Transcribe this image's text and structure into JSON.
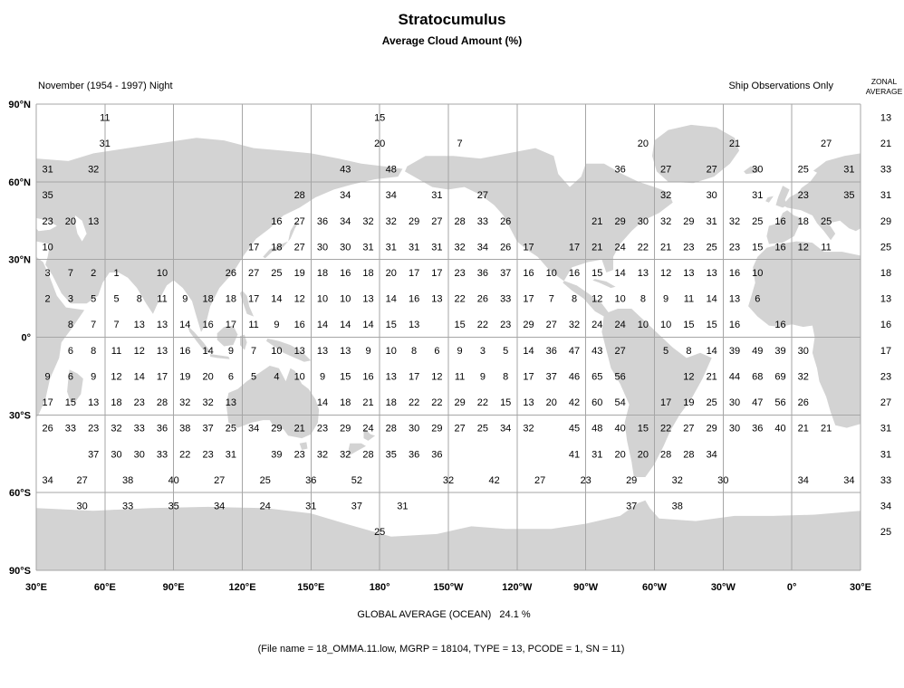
{
  "header_left": "November (1954 - 1997) Night",
  "header_right": "Ship Observations Only",
  "zonal_header": {
    "line1": "ZONAL",
    "line2": "AVERAGE"
  },
  "footer": {
    "global_average": "GLOBAL AVERAGE (OCEAN)   24.1 %",
    "file_info": "(File name = 18_OMMA.11.low, MGRP = 18104, TYPE = 13, PCODE = 1, SN = 11)"
  },
  "colors": {
    "land": "#d3d3d3",
    "grid": "#a6a6a6",
    "text": "#000000"
  },
  "chart_data": {
    "type": "heatmap",
    "title": "Stratocumulus",
    "subtitle": "Average Cloud Amount (%)",
    "units": "percent cloud amount",
    "x_tick_labels": [
      "30°E",
      "60°E",
      "90°E",
      "120°E",
      "150°E",
      "180°",
      "150°W",
      "120°W",
      "90°W",
      "60°W",
      "30°W",
      "0°",
      "30°E"
    ],
    "y_tick_labels": [
      "90°N",
      "60°N",
      "30°N",
      "0°",
      "30°S",
      "60°S",
      "90°S"
    ],
    "lon_start_deg": 30,
    "lon_cols": 36,
    "lat_rows": 18,
    "grid": "30 degree graticule, values in 10 degree latitude bands, column index 0 = 30E-40E eastward",
    "rows": [
      [
        [
          2.5,
          11
        ],
        [
          14.5,
          15
        ]
      ],
      [
        [
          2.5,
          31
        ],
        [
          14.5,
          20
        ],
        [
          18,
          7
        ],
        [
          26,
          20
        ],
        [
          30,
          21
        ],
        [
          34,
          27
        ]
      ],
      [
        [
          0,
          31
        ],
        [
          2,
          32
        ],
        [
          13,
          43
        ],
        [
          15,
          48
        ],
        [
          25,
          36
        ],
        [
          27,
          27
        ],
        [
          29,
          27
        ],
        [
          31,
          30
        ],
        [
          33,
          25
        ],
        [
          35,
          31
        ]
      ],
      [
        [
          0,
          35
        ],
        [
          11,
          28
        ],
        [
          13,
          34
        ],
        [
          15,
          34
        ],
        [
          17,
          31
        ],
        [
          19,
          27
        ],
        [
          27,
          32
        ],
        [
          29,
          30
        ],
        [
          31,
          31
        ],
        [
          33,
          23
        ],
        [
          35,
          35
        ]
      ],
      [
        [
          0,
          23
        ],
        [
          1,
          20
        ],
        [
          2,
          13
        ],
        [
          10,
          16
        ],
        [
          11,
          27
        ],
        [
          12,
          36
        ],
        [
          13,
          34
        ],
        [
          14,
          32
        ],
        [
          15,
          32
        ],
        [
          16,
          29
        ],
        [
          17,
          27
        ],
        [
          18,
          28
        ],
        [
          19,
          33
        ],
        [
          20,
          26
        ],
        [
          24,
          21
        ],
        [
          25,
          29
        ],
        [
          26,
          30
        ],
        [
          27,
          32
        ],
        [
          28,
          29
        ],
        [
          29,
          31
        ],
        [
          30,
          32
        ],
        [
          31,
          25
        ],
        [
          32,
          16
        ],
        [
          33,
          18
        ],
        [
          34,
          25
        ]
      ],
      [
        [
          0,
          10
        ],
        [
          9,
          17
        ],
        [
          10,
          18
        ],
        [
          11,
          27
        ],
        [
          12,
          30
        ],
        [
          13,
          30
        ],
        [
          14,
          31
        ],
        [
          15,
          31
        ],
        [
          16,
          31
        ],
        [
          17,
          31
        ],
        [
          18,
          32
        ],
        [
          19,
          34
        ],
        [
          20,
          26
        ],
        [
          21,
          17
        ],
        [
          23,
          17
        ],
        [
          24,
          21
        ],
        [
          25,
          24
        ],
        [
          26,
          22
        ],
        [
          27,
          21
        ],
        [
          28,
          23
        ],
        [
          29,
          25
        ],
        [
          30,
          23
        ],
        [
          31,
          15
        ],
        [
          32,
          16
        ],
        [
          33,
          12
        ],
        [
          34,
          11
        ]
      ],
      [
        [
          0,
          3
        ],
        [
          1,
          7
        ],
        [
          2,
          2
        ],
        [
          3,
          1
        ],
        [
          5,
          10
        ],
        [
          8,
          26
        ],
        [
          9,
          27
        ],
        [
          10,
          25
        ],
        [
          11,
          19
        ],
        [
          12,
          18
        ],
        [
          13,
          16
        ],
        [
          14,
          18
        ],
        [
          15,
          20
        ],
        [
          16,
          17
        ],
        [
          17,
          17
        ],
        [
          18,
          23
        ],
        [
          19,
          36
        ],
        [
          20,
          37
        ],
        [
          21,
          16
        ],
        [
          22,
          10
        ],
        [
          23,
          16
        ],
        [
          24,
          15
        ],
        [
          25,
          14
        ],
        [
          26,
          13
        ],
        [
          27,
          12
        ],
        [
          28,
          13
        ],
        [
          29,
          13
        ],
        [
          30,
          16
        ],
        [
          31,
          10
        ]
      ],
      [
        [
          0,
          2
        ],
        [
          1,
          3
        ],
        [
          2,
          5
        ],
        [
          3,
          5
        ],
        [
          4,
          8
        ],
        [
          5,
          11
        ],
        [
          6,
          9
        ],
        [
          7,
          18
        ],
        [
          8,
          18
        ],
        [
          9,
          17
        ],
        [
          10,
          14
        ],
        [
          11,
          12
        ],
        [
          12,
          10
        ],
        [
          13,
          10
        ],
        [
          14,
          13
        ],
        [
          15,
          14
        ],
        [
          16,
          16
        ],
        [
          17,
          13
        ],
        [
          18,
          22
        ],
        [
          19,
          26
        ],
        [
          20,
          33
        ],
        [
          21,
          17
        ],
        [
          22,
          7
        ],
        [
          23,
          8
        ],
        [
          24,
          12
        ],
        [
          25,
          10
        ],
        [
          26,
          8
        ],
        [
          27,
          9
        ],
        [
          28,
          11
        ],
        [
          29,
          14
        ],
        [
          30,
          13
        ],
        [
          31,
          6
        ]
      ],
      [
        [
          1,
          8
        ],
        [
          2,
          7
        ],
        [
          3,
          7
        ],
        [
          4,
          13
        ],
        [
          5,
          13
        ],
        [
          6,
          14
        ],
        [
          7,
          16
        ],
        [
          8,
          17
        ],
        [
          9,
          11
        ],
        [
          10,
          9
        ],
        [
          11,
          16
        ],
        [
          12,
          14
        ],
        [
          13,
          14
        ],
        [
          14,
          14
        ],
        [
          15,
          15
        ],
        [
          16,
          13
        ],
        [
          18,
          15
        ],
        [
          19,
          22
        ],
        [
          20,
          23
        ],
        [
          21,
          29
        ],
        [
          22,
          27
        ],
        [
          23,
          32
        ],
        [
          24,
          24
        ],
        [
          25,
          24
        ],
        [
          26,
          10
        ],
        [
          27,
          10
        ],
        [
          28,
          15
        ],
        [
          29,
          15
        ],
        [
          30,
          16
        ],
        [
          32,
          16
        ]
      ],
      [
        [
          1,
          6
        ],
        [
          2,
          8
        ],
        [
          3,
          11
        ],
        [
          4,
          12
        ],
        [
          5,
          13
        ],
        [
          6,
          16
        ],
        [
          7,
          14
        ],
        [
          8,
          9
        ],
        [
          9,
          7
        ],
        [
          10,
          10
        ],
        [
          11,
          13
        ],
        [
          12,
          13
        ],
        [
          13,
          13
        ],
        [
          14,
          9
        ],
        [
          15,
          10
        ],
        [
          16,
          8
        ],
        [
          17,
          6
        ],
        [
          18,
          9
        ],
        [
          19,
          3
        ],
        [
          20,
          5
        ],
        [
          21,
          14
        ],
        [
          22,
          36
        ],
        [
          23,
          47
        ],
        [
          24,
          43
        ],
        [
          25,
          27
        ],
        [
          27,
          5
        ],
        [
          28,
          8
        ],
        [
          29,
          14
        ],
        [
          30,
          39
        ],
        [
          31,
          49
        ],
        [
          32,
          39
        ],
        [
          33,
          30
        ]
      ],
      [
        [
          0,
          9
        ],
        [
          1,
          6
        ],
        [
          2,
          9
        ],
        [
          3,
          12
        ],
        [
          4,
          14
        ],
        [
          5,
          17
        ],
        [
          6,
          19
        ],
        [
          7,
          20
        ],
        [
          8,
          6
        ],
        [
          9,
          5
        ],
        [
          10,
          4
        ],
        [
          11,
          10
        ],
        [
          12,
          9
        ],
        [
          13,
          15
        ],
        [
          14,
          16
        ],
        [
          15,
          13
        ],
        [
          16,
          17
        ],
        [
          17,
          12
        ],
        [
          18,
          11
        ],
        [
          19,
          9
        ],
        [
          20,
          8
        ],
        [
          21,
          17
        ],
        [
          22,
          37
        ],
        [
          23,
          46
        ],
        [
          24,
          65
        ],
        [
          25,
          56
        ],
        [
          28,
          12
        ],
        [
          29,
          21
        ],
        [
          30,
          44
        ],
        [
          31,
          68
        ],
        [
          32,
          69
        ],
        [
          33,
          32
        ]
      ],
      [
        [
          0,
          17
        ],
        [
          1,
          15
        ],
        [
          2,
          13
        ],
        [
          3,
          18
        ],
        [
          4,
          23
        ],
        [
          5,
          28
        ],
        [
          6,
          32
        ],
        [
          7,
          32
        ],
        [
          8,
          13
        ],
        [
          12,
          14
        ],
        [
          13,
          18
        ],
        [
          14,
          21
        ],
        [
          15,
          18
        ],
        [
          16,
          22
        ],
        [
          17,
          22
        ],
        [
          18,
          29
        ],
        [
          19,
          22
        ],
        [
          20,
          15
        ],
        [
          21,
          13
        ],
        [
          22,
          20
        ],
        [
          23,
          42
        ],
        [
          24,
          60
        ],
        [
          25,
          54
        ],
        [
          27,
          17
        ],
        [
          28,
          19
        ],
        [
          29,
          25
        ],
        [
          30,
          30
        ],
        [
          31,
          47
        ],
        [
          32,
          56
        ],
        [
          33,
          26
        ]
      ],
      [
        [
          0,
          26
        ],
        [
          1,
          33
        ],
        [
          2,
          23
        ],
        [
          3,
          32
        ],
        [
          4,
          33
        ],
        [
          5,
          36
        ],
        [
          6,
          38
        ],
        [
          7,
          37
        ],
        [
          8,
          25
        ],
        [
          9,
          34
        ],
        [
          10,
          29
        ],
        [
          11,
          21
        ],
        [
          12,
          23
        ],
        [
          13,
          29
        ],
        [
          14,
          24
        ],
        [
          15,
          28
        ],
        [
          16,
          30
        ],
        [
          17,
          29
        ],
        [
          18,
          27
        ],
        [
          19,
          25
        ],
        [
          20,
          34
        ],
        [
          21,
          32
        ],
        [
          23,
          45
        ],
        [
          24,
          48
        ],
        [
          25,
          40
        ],
        [
          26,
          15
        ],
        [
          27,
          22
        ],
        [
          28,
          27
        ],
        [
          29,
          29
        ],
        [
          30,
          30
        ],
        [
          31,
          36
        ],
        [
          32,
          40
        ],
        [
          33,
          21
        ],
        [
          34,
          21
        ]
      ],
      [
        [
          2,
          37
        ],
        [
          3,
          30
        ],
        [
          4,
          30
        ],
        [
          5,
          33
        ],
        [
          6,
          22
        ],
        [
          7,
          23
        ],
        [
          8,
          31
        ],
        [
          10,
          39
        ],
        [
          11,
          23
        ],
        [
          12,
          32
        ],
        [
          13,
          32
        ],
        [
          14,
          28
        ],
        [
          15,
          35
        ],
        [
          16,
          36
        ],
        [
          17,
          36
        ],
        [
          23,
          41
        ],
        [
          24,
          31
        ],
        [
          25,
          20
        ],
        [
          26,
          20
        ],
        [
          27,
          28
        ],
        [
          28,
          28
        ],
        [
          29,
          34
        ]
      ],
      [
        [
          0,
          34
        ],
        [
          1.5,
          27
        ],
        [
          3.5,
          38
        ],
        [
          5.5,
          40
        ],
        [
          7.5,
          27
        ],
        [
          9.5,
          25
        ],
        [
          11.5,
          36
        ],
        [
          13.5,
          52
        ],
        [
          17.5,
          32
        ],
        [
          19.5,
          42
        ],
        [
          21.5,
          27
        ],
        [
          23.5,
          23
        ],
        [
          25.5,
          29
        ],
        [
          27.5,
          32
        ],
        [
          29.5,
          30
        ],
        [
          33,
          34
        ],
        [
          35,
          34
        ]
      ],
      [
        [
          1.5,
          30
        ],
        [
          3.5,
          33
        ],
        [
          5.5,
          35
        ],
        [
          7.5,
          34
        ],
        [
          9.5,
          24
        ],
        [
          11.5,
          31
        ],
        [
          13.5,
          37
        ],
        [
          15.5,
          31
        ],
        [
          25.5,
          37
        ],
        [
          27.5,
          38
        ]
      ],
      [
        [
          14.5,
          25
        ]
      ],
      []
    ],
    "zonal_averages": [
      13,
      21,
      33,
      31,
      29,
      25,
      18,
      13,
      16,
      17,
      23,
      27,
      31,
      31,
      33,
      34,
      25
    ],
    "global_average_ocean_pct": 24.1
  }
}
